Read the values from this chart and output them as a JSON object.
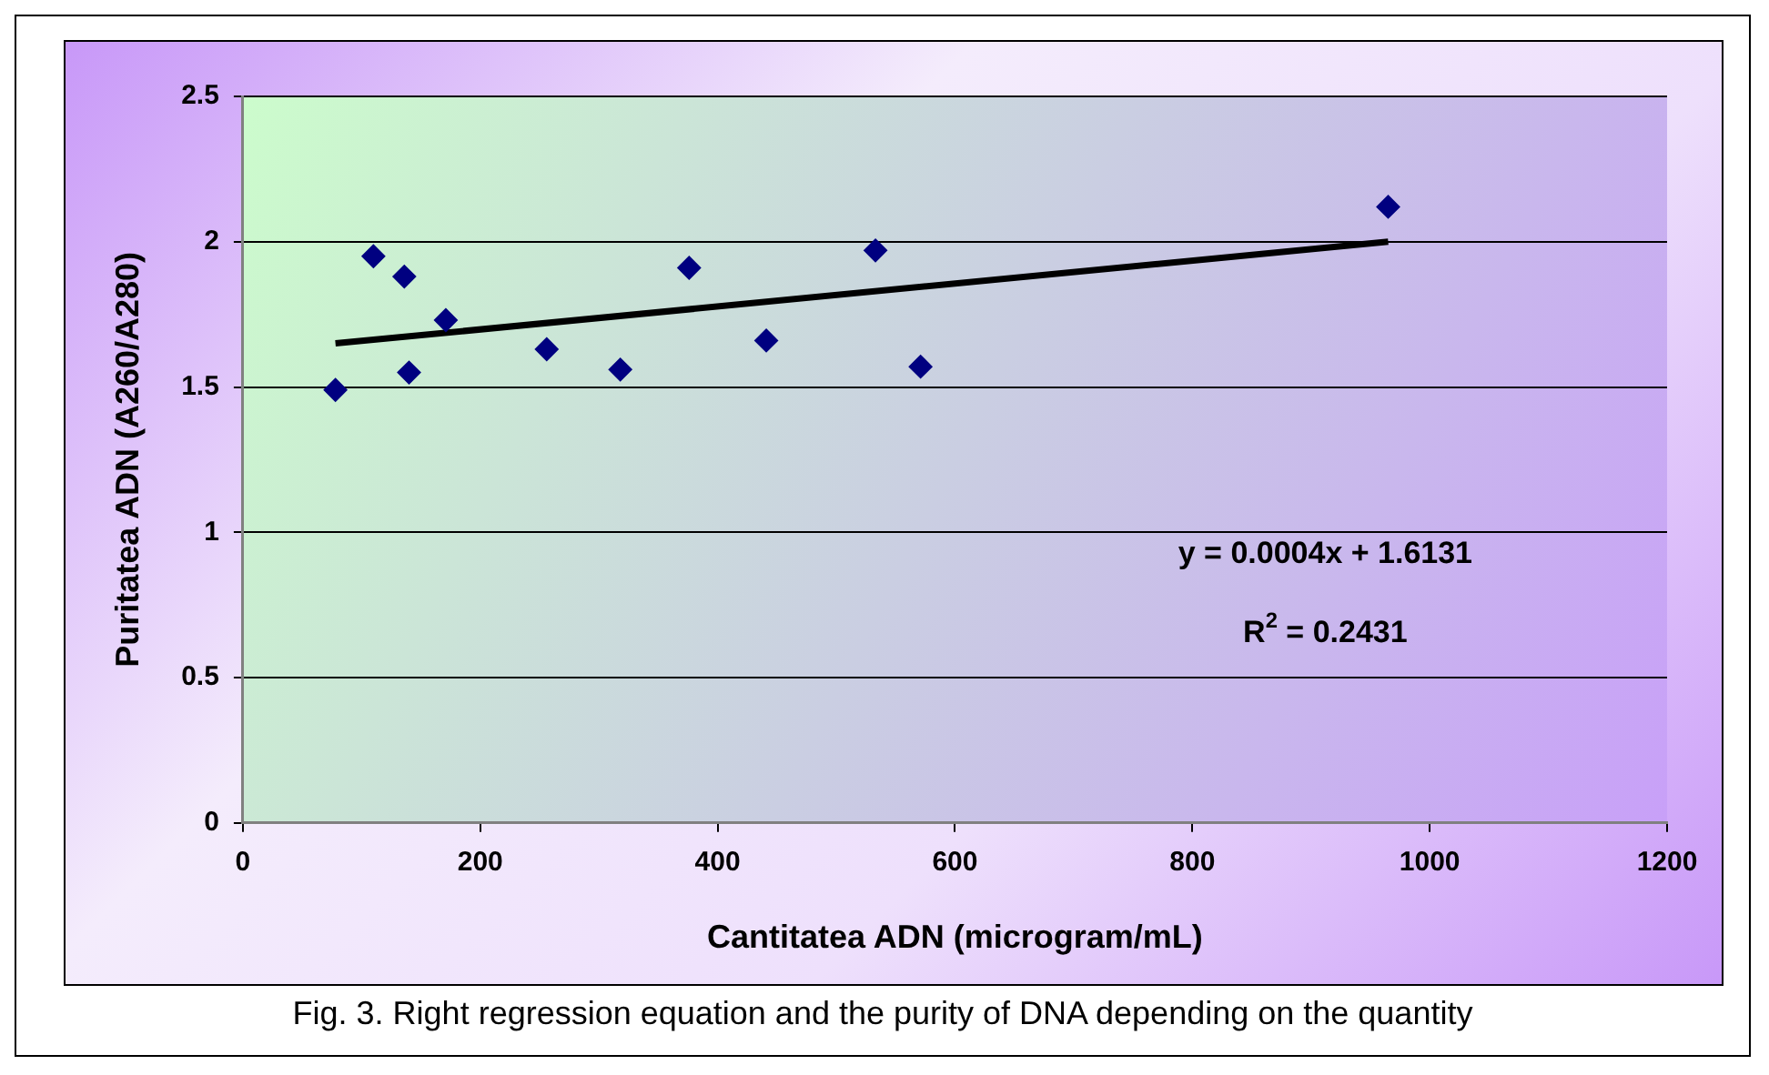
{
  "chart_data": {
    "type": "scatter",
    "xlabel": "Cantitatea ADN (microgram/mL)",
    "ylabel": "Puritatea ADN (A260/A280)",
    "series": [
      {
        "marker": "diamond",
        "color": "#000080",
        "x": [
          78,
          110,
          136,
          140,
          171,
          256,
          318,
          376,
          441,
          533,
          571,
          965
        ],
        "values": [
          1.49,
          1.95,
          1.88,
          1.55,
          1.73,
          1.63,
          1.56,
          1.91,
          1.66,
          1.97,
          1.57,
          2.12
        ]
      },
      {
        "type": "line",
        "marker": "none",
        "color": "#000000",
        "x": [
          78,
          965
        ],
        "values": [
          1.65,
          2.0
        ]
      }
    ],
    "xlim": [
      0,
      1200
    ],
    "xticks": [
      0,
      200,
      400,
      600,
      800,
      1000,
      1200
    ],
    "ylim": [
      0,
      2.5
    ],
    "yticks": [
      0,
      0.5,
      1,
      1.5,
      2,
      2.5
    ],
    "grid": "y",
    "legend": false,
    "annotations": [
      "y = 0.0004x + 1.6131",
      "R$^{2}$ = 0.2431",
      "Fig. 3. Right regression equation and the purity of DNA depending on the quantity"
    ]
  }
}
